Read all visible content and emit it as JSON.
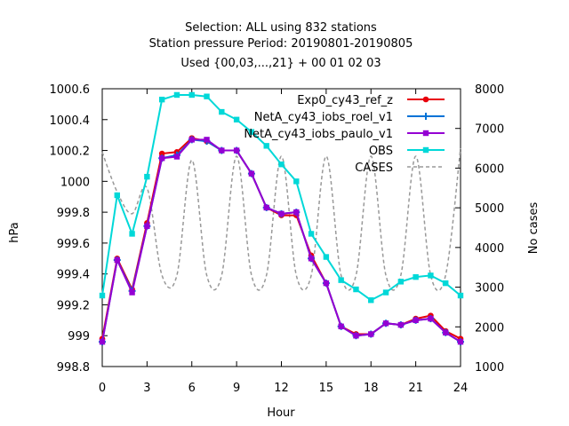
{
  "chart_data": {
    "type": "line",
    "title_lines": [
      "Selection: ALL using   832 stations",
      "Station pressure   Period: 20190801-20190805",
      "Used {00,03,...,21} + 00 01 02 03"
    ],
    "xlabel": "Hour",
    "ylabel": "hPa",
    "y2label": "No cases",
    "xlim": [
      0,
      24
    ],
    "ylim": [
      998.8,
      1000.6
    ],
    "y2lim": [
      1000,
      8000
    ],
    "xticks": [
      0,
      3,
      6,
      9,
      12,
      15,
      18,
      21,
      24
    ],
    "yticks": [
      998.8,
      999,
      999.2,
      999.4,
      999.6,
      999.8,
      1000,
      1000.2,
      1000.4,
      1000.6
    ],
    "ytick_labels": [
      "998.8",
      "999",
      "999.2",
      "999.4",
      "999.6",
      "999.8",
      "1000",
      "1000.2",
      "1000.4",
      "1000.6"
    ],
    "y2ticks": [
      1000,
      2000,
      3000,
      4000,
      5000,
      6000,
      7000,
      8000
    ],
    "legend_position": "top-right",
    "grid": false,
    "x": [
      0,
      1,
      2,
      3,
      4,
      5,
      6,
      7,
      8,
      9,
      10,
      11,
      12,
      13,
      14,
      15,
      16,
      17,
      18,
      19,
      20,
      21,
      22,
      23,
      24
    ],
    "series": [
      {
        "name": "Exp0_cy43_ref_z",
        "color": "#e8000b",
        "marker": "filled-circle",
        "axis": "y1",
        "values": [
          998.98,
          999.5,
          999.3,
          999.73,
          1000.18,
          1000.19,
          1000.28,
          1000.26,
          1000.2,
          1000.2,
          1000.05,
          999.83,
          999.78,
          999.78,
          999.52,
          999.34,
          999.06,
          999.01,
          999.01,
          999.08,
          999.07,
          999.11,
          999.13,
          999.03,
          998.98
        ]
      },
      {
        "name": "NetA_cy43_iobs_roel_v1",
        "color": "#0072d6",
        "marker": "cross",
        "axis": "y1",
        "values": [
          998.96,
          999.49,
          999.29,
          999.71,
          1000.15,
          1000.17,
          1000.27,
          1000.26,
          1000.2,
          1000.2,
          1000.05,
          999.83,
          999.79,
          999.8,
          999.5,
          999.34,
          999.06,
          999.0,
          999.01,
          999.08,
          999.07,
          999.1,
          999.11,
          999.02,
          998.96
        ]
      },
      {
        "name": "NetA_cy43_iobs_paulo_v1",
        "color": "#9400d3",
        "marker": "filled-square",
        "axis": "y1",
        "values": [
          998.96,
          999.49,
          999.28,
          999.71,
          1000.15,
          1000.16,
          1000.27,
          1000.27,
          1000.2,
          1000.2,
          1000.05,
          999.83,
          999.79,
          999.8,
          999.5,
          999.34,
          999.06,
          999.0,
          999.01,
          999.08,
          999.07,
          999.1,
          999.11,
          999.02,
          998.96
        ]
      },
      {
        "name": "OBS",
        "color": "#00d8d8",
        "marker": "filled-square",
        "axis": "y1",
        "values": [
          999.26,
          999.91,
          999.66,
          1000.03,
          1000.53,
          1000.56,
          1000.56,
          1000.55,
          1000.45,
          1000.4,
          1000.32,
          1000.23,
          1000.11,
          1000.0,
          999.66,
          999.51,
          999.36,
          999.3,
          999.23,
          999.28,
          999.35,
          999.38,
          999.39,
          999.34,
          999.26
        ]
      },
      {
        "name": "CASES",
        "color": "#999999",
        "marker": "none",
        "dash": true,
        "axis": "y2",
        "values": [
          6400,
          5400,
          4850,
          5500,
          3300,
          3300,
          6200,
          3300,
          3300,
          6300,
          3300,
          3300,
          6300,
          3300,
          3300,
          6300,
          3300,
          3300,
          6300,
          3300,
          3300,
          6300,
          3300,
          3300,
          6500
        ]
      }
    ]
  }
}
